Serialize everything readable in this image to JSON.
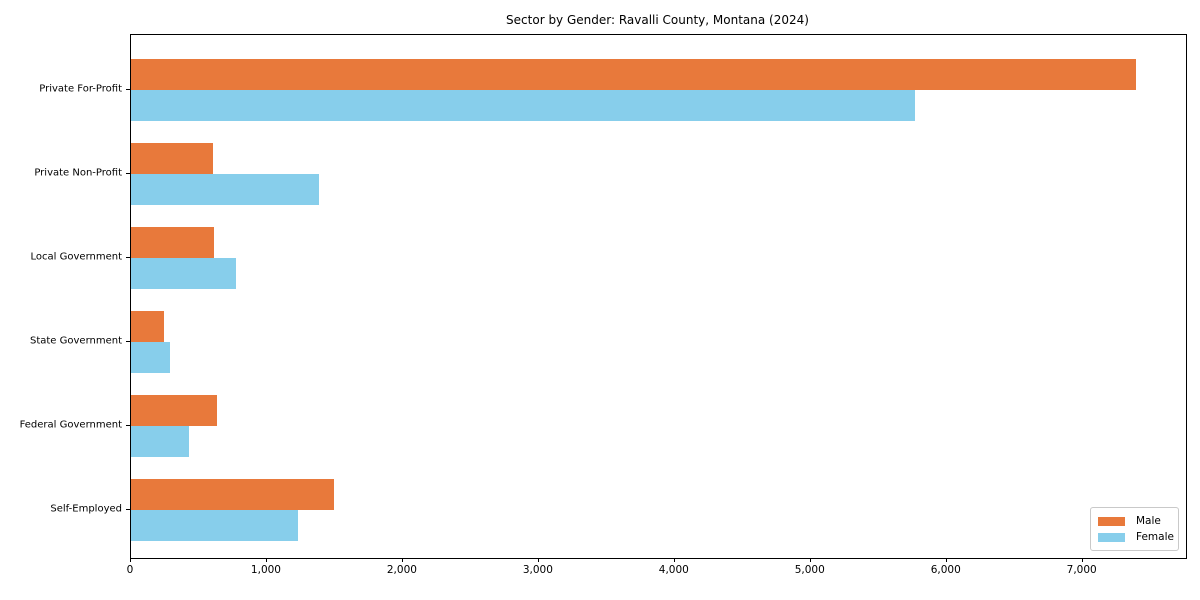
{
  "chart_data": {
    "type": "bar",
    "orientation": "horizontal",
    "title": "Sector by Gender: Ravalli County, Montana (2024)",
    "categories": [
      "Private For-Profit",
      "Private Non-Profit",
      "Local Government",
      "State Government",
      "Federal Government",
      "Self-Employed"
    ],
    "series": [
      {
        "name": "Male",
        "color": "#e8793b",
        "values": [
          7395,
          600,
          610,
          245,
          630,
          1490
        ]
      },
      {
        "name": "Female",
        "color": "#87ceeb",
        "values": [
          5765,
          1385,
          775,
          285,
          425,
          1225
        ]
      }
    ],
    "xlim": [
      0,
      7760
    ],
    "x_ticks": [
      0,
      1000,
      2000,
      3000,
      4000,
      5000,
      6000,
      7000
    ],
    "x_tick_labels": [
      "0",
      "1,000",
      "2,000",
      "3,000",
      "4,000",
      "5,000",
      "6,000",
      "7,000"
    ],
    "xlabel": "",
    "ylabel": "",
    "grid": false,
    "legend": {
      "position": "lower right",
      "entries": [
        "Male",
        "Female"
      ]
    }
  }
}
